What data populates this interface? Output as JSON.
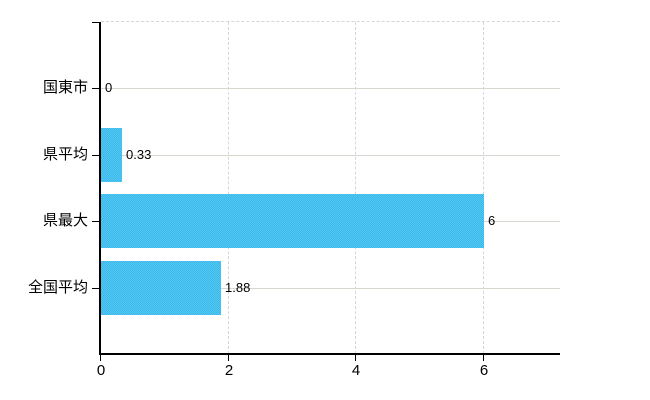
{
  "chart_data": {
    "type": "bar",
    "orientation": "horizontal",
    "title": "",
    "xlabel": "",
    "ylabel": "",
    "categories": [
      "国東市",
      "県平均",
      "県最大",
      "全国平均"
    ],
    "values": [
      0,
      0.33,
      6,
      1.88
    ],
    "value_labels": [
      "0",
      "0.33",
      "6",
      "1.88"
    ],
    "x_ticks": [
      0,
      2,
      4,
      6
    ],
    "x_tick_labels": [
      "0",
      "2",
      "4",
      "6"
    ],
    "xlim": [
      0,
      7.2
    ],
    "legend_position": "none",
    "grid": {
      "horizontal": true,
      "vertical": true,
      "top_border_dashed": true
    },
    "colors": {
      "bar": "#47BFEF",
      "bar_dither_light": "#55C8F2",
      "bar_dither_dark": "#3AB8EC",
      "axis": "#000000",
      "text": "#000000",
      "h_gridline": "#D4D9CF",
      "v_gridline": "#DCD3DA",
      "background": "#FFFFFF"
    }
  }
}
